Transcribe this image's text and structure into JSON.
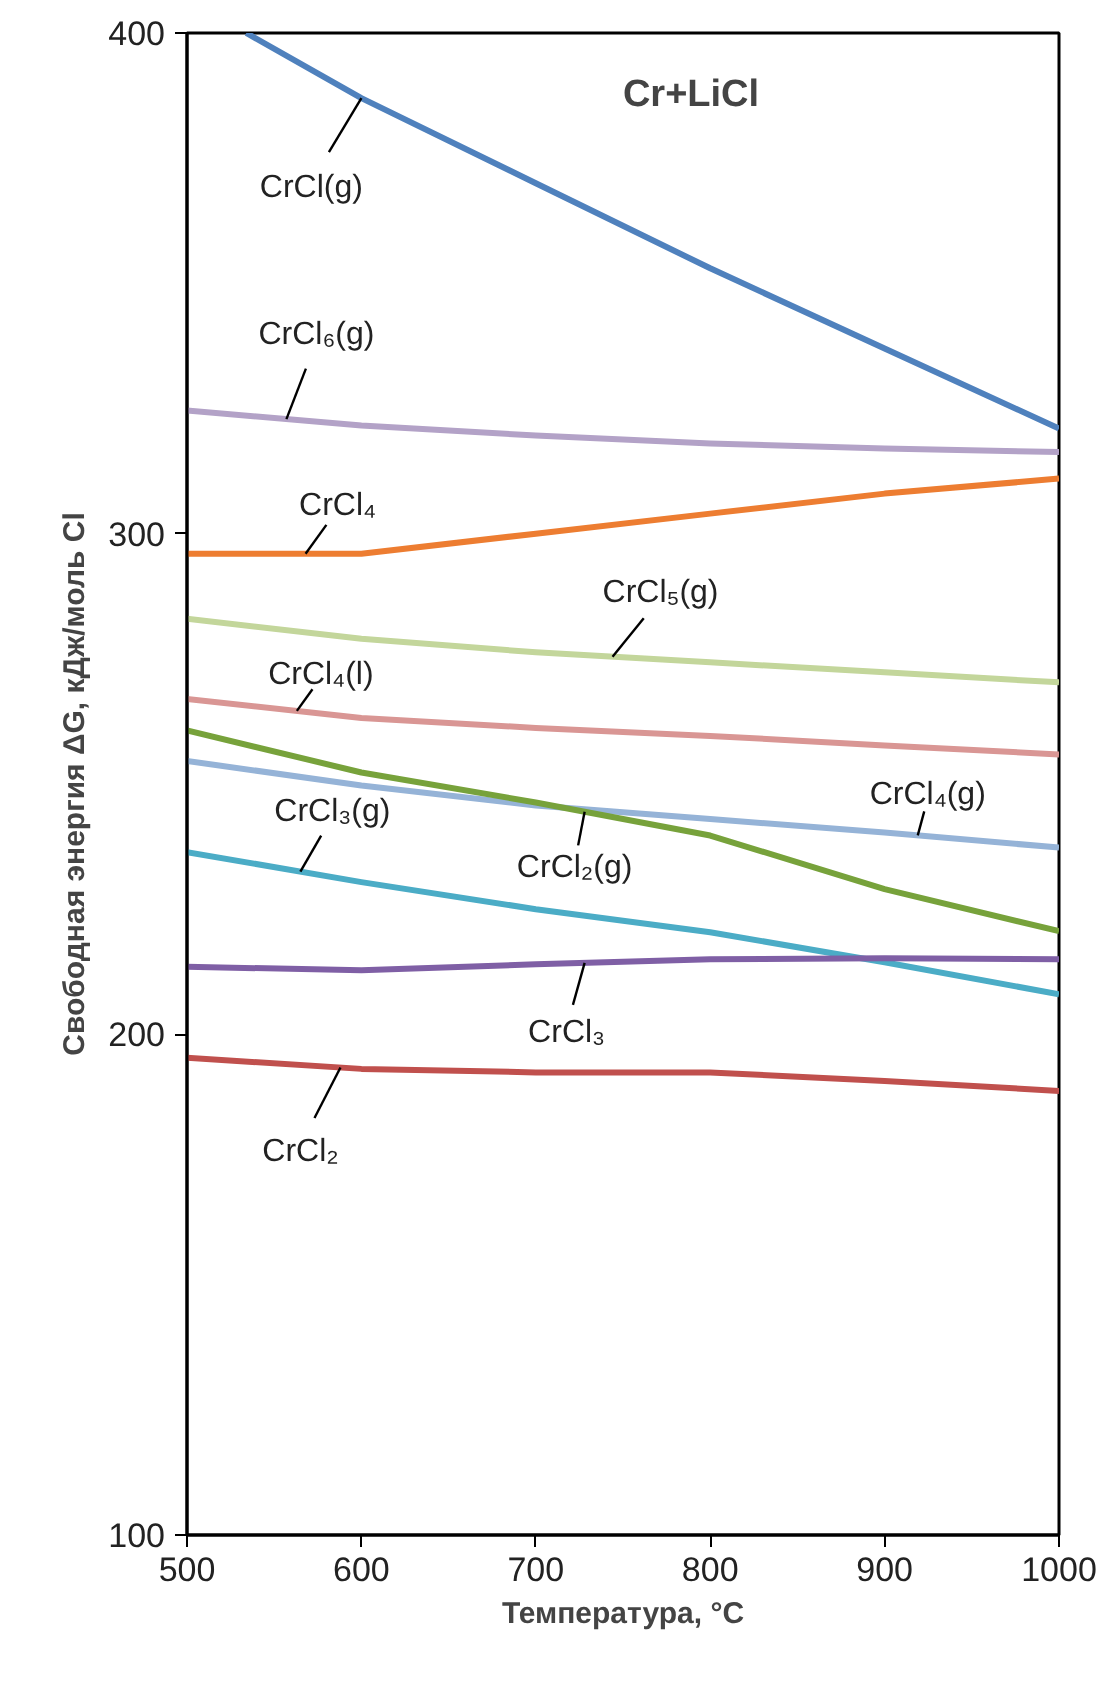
{
  "chart_data": {
    "type": "line",
    "title": "Cr+LiCl",
    "xlabel": "Температура, °C",
    "ylabel": "Свободная энергия ΔG, кДж/моль Cl",
    "x": [
      500,
      600,
      700,
      800,
      900,
      1000
    ],
    "xlim": [
      500,
      1000
    ],
    "xticks": [
      500,
      600,
      700,
      800,
      900,
      1000
    ],
    "ylim": [
      100,
      400
    ],
    "yticks": [
      100,
      200,
      300,
      400
    ],
    "grid": false,
    "marker": "none",
    "line_style": "solid",
    "series": [
      {
        "name": "CrCl(g)",
        "color": "#4f81bd",
        "x": [
          534,
          600,
          700,
          800,
          900,
          1000
        ],
        "values": [
          400,
          387,
          370,
          353,
          337,
          321
        ]
      },
      {
        "name": "CrCl₆(g)",
        "color": "#b3a2c7",
        "values": [
          324.6,
          321.6,
          319.6,
          318,
          317,
          316.3
        ]
      },
      {
        "name": "CrCl₄",
        "color": "#ed7d31",
        "values": [
          296,
          296,
          300,
          304,
          308,
          311
        ]
      },
      {
        "name": "CrCl₅(g)",
        "color": "#c3d69b",
        "values": [
          283,
          279,
          276.3,
          274.3,
          272.3,
          270.3
        ]
      },
      {
        "name": "CrCl₄(l)",
        "color": "#d99694",
        "values": [
          267,
          263.2,
          261.2,
          259.6,
          257.7,
          255.9
        ]
      },
      {
        "name": "CrCl₄(g)",
        "color": "#95b3d7",
        "values": [
          254.6,
          249.7,
          245.7,
          243,
          240.3,
          237.3
        ]
      },
      {
        "name": "CrCl₂(g)",
        "color": "#77a23b",
        "values": [
          260.7,
          252.3,
          246.3,
          239.7,
          229,
          220.6
        ]
      },
      {
        "name": "CrCl₃(g)",
        "color": "#4bacc6",
        "values": [
          236.4,
          230.4,
          225,
          220.4,
          214.4,
          208
        ]
      },
      {
        "name": "CrCl₃",
        "color": "#7f5fa5",
        "values": [
          213.5,
          212.8,
          214,
          215,
          215.2,
          215
        ]
      },
      {
        "name": "CrCl₂",
        "color": "#c0504d",
        "values": [
          195.3,
          193.1,
          192.4,
          192.4,
          190.7,
          188.7
        ]
      }
    ]
  }
}
